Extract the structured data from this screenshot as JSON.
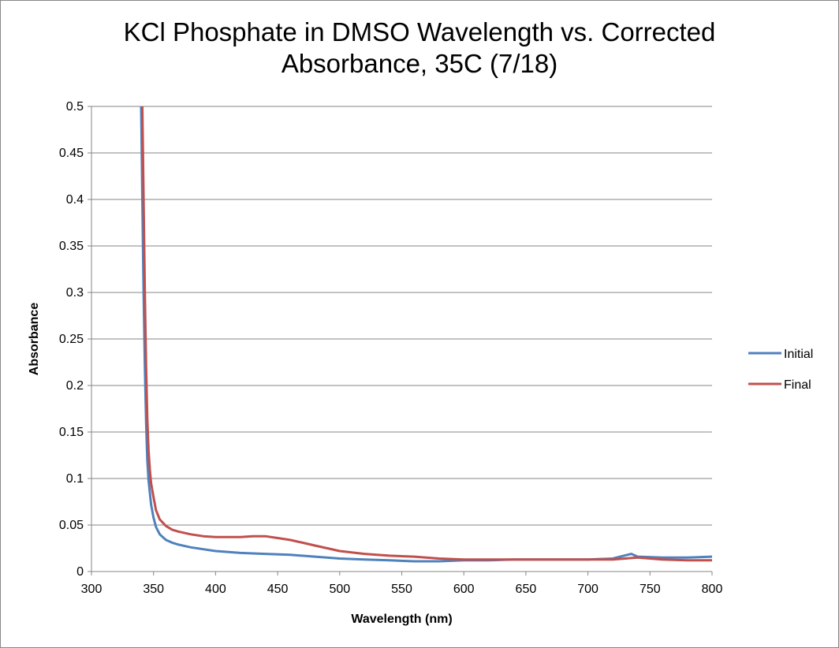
{
  "chart_data": {
    "type": "line",
    "title_lines": [
      "KCl Phosphate in DMSO Wavelength vs. Corrected",
      "Absorbance, 35C (7/18)"
    ],
    "xlabel": "Wavelength (nm)",
    "ylabel": "Absorbance",
    "xlim": [
      300,
      800
    ],
    "ylim": [
      0,
      0.5
    ],
    "x_ticks": [
      300,
      350,
      400,
      450,
      500,
      550,
      600,
      650,
      700,
      750,
      800
    ],
    "y_ticks": [
      0,
      0.05,
      0.1,
      0.15,
      0.2,
      0.25,
      0.3,
      0.35,
      0.4,
      0.45,
      0.5
    ],
    "x_tick_labels": [
      "300",
      "350",
      "400",
      "450",
      "500",
      "550",
      "600",
      "650",
      "700",
      "750",
      "800"
    ],
    "y_tick_labels": [
      "0",
      "0.05",
      "0.1",
      "0.15",
      "0.2",
      "0.25",
      "0.3",
      "0.35",
      "0.4",
      "0.45",
      "0.5"
    ],
    "grid": "horizontal",
    "legend_position": "right",
    "series": [
      {
        "name": "Initial",
        "color": "#4F81BD",
        "x": [
          340,
          341,
          342,
          343,
          344,
          345,
          346,
          347,
          348,
          350,
          352,
          355,
          360,
          365,
          370,
          380,
          390,
          400,
          420,
          440,
          460,
          480,
          500,
          520,
          540,
          560,
          580,
          600,
          620,
          640,
          660,
          680,
          700,
          720,
          735,
          740,
          760,
          780,
          800
        ],
        "y": [
          0.5,
          0.4,
          0.3,
          0.22,
          0.16,
          0.12,
          0.098,
          0.085,
          0.072,
          0.058,
          0.048,
          0.04,
          0.034,
          0.031,
          0.029,
          0.026,
          0.024,
          0.022,
          0.02,
          0.019,
          0.018,
          0.016,
          0.014,
          0.013,
          0.012,
          0.011,
          0.011,
          0.012,
          0.012,
          0.013,
          0.013,
          0.013,
          0.013,
          0.014,
          0.019,
          0.016,
          0.015,
          0.015,
          0.016
        ]
      },
      {
        "name": "Final",
        "color": "#C0504D",
        "x": [
          341,
          342,
          343,
          344,
          345,
          346,
          347,
          348,
          350,
          352,
          355,
          360,
          365,
          370,
          380,
          390,
          400,
          410,
          420,
          430,
          440,
          450,
          460,
          470,
          480,
          490,
          500,
          520,
          540,
          560,
          580,
          600,
          620,
          640,
          660,
          680,
          700,
          720,
          740,
          760,
          780,
          800
        ],
        "y": [
          0.5,
          0.4,
          0.3,
          0.22,
          0.165,
          0.13,
          0.11,
          0.095,
          0.08,
          0.066,
          0.056,
          0.049,
          0.045,
          0.043,
          0.04,
          0.038,
          0.037,
          0.037,
          0.037,
          0.038,
          0.038,
          0.036,
          0.034,
          0.031,
          0.028,
          0.025,
          0.022,
          0.019,
          0.017,
          0.016,
          0.014,
          0.013,
          0.013,
          0.013,
          0.013,
          0.013,
          0.013,
          0.013,
          0.015,
          0.013,
          0.012,
          0.012
        ]
      }
    ]
  }
}
